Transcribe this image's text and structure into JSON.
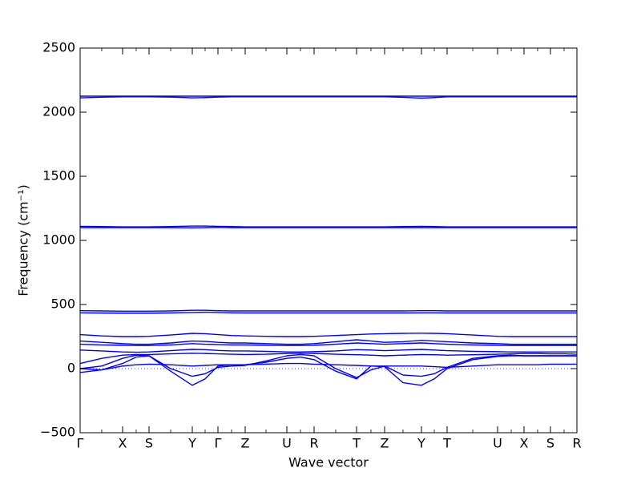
{
  "chart_data": {
    "type": "line",
    "xlabel": "Wave vector",
    "ylabel": "Frequency (cm⁻¹)",
    "x": [
      0,
      27,
      53,
      70,
      86,
      113,
      140,
      156,
      172,
      189,
      206,
      232,
      258,
      275,
      292,
      319,
      345,
      363,
      380,
      403,
      426,
      442,
      458,
      490,
      521,
      538,
      554,
      571,
      587,
      604,
      620
    ],
    "xlim": [
      0,
      620
    ],
    "xticks": [
      {
        "value": 0,
        "label": "Γ"
      },
      {
        "value": 53,
        "label": "X"
      },
      {
        "value": 86,
        "label": "S"
      },
      {
        "value": 140,
        "label": "Y"
      },
      {
        "value": 172,
        "label": "Γ"
      },
      {
        "value": 206,
        "label": "Z"
      },
      {
        "value": 258,
        "label": "U"
      },
      {
        "value": 292,
        "label": "R"
      },
      {
        "value": 345,
        "label": "T"
      },
      {
        "value": 380,
        "label": "Z"
      },
      {
        "value": 426,
        "label": "Y"
      },
      {
        "value": 458,
        "label": "T"
      },
      {
        "value": 521,
        "label": "U"
      },
      {
        "value": 554,
        "label": "X"
      },
      {
        "value": 587,
        "label": "S"
      },
      {
        "value": 620,
        "label": "R"
      }
    ],
    "ylim": [
      -500,
      2500
    ],
    "yticks": [
      -500,
      0,
      500,
      1000,
      1500,
      2000,
      2500
    ],
    "series": [
      {
        "color": "#0000ff",
        "values": [
          2125,
          2125,
          2125,
          2125,
          2125,
          2125,
          2125,
          2125,
          2125,
          2125,
          2125,
          2125,
          2125,
          2125,
          2125,
          2125,
          2125,
          2125,
          2125,
          2125,
          2125,
          2125,
          2125,
          2125,
          2125,
          2125,
          2125,
          2125,
          2125,
          2125,
          2125
        ]
      },
      {
        "color": "#0000ff",
        "values": [
          2112,
          2117,
          2120,
          2120,
          2120,
          2118,
          2112,
          2114,
          2118,
          2120,
          2120,
          2120,
          2120,
          2120,
          2120,
          2120,
          2120,
          2120,
          2120,
          2116,
          2110,
          2114,
          2120,
          2120,
          2120,
          2120,
          2120,
          2120,
          2120,
          2120,
          2120
        ]
      },
      {
        "color": "#0000ff",
        "values": [
          1110,
          1108,
          1106,
          1106,
          1106,
          1108,
          1112,
          1112,
          1110,
          1108,
          1106,
          1106,
          1106,
          1106,
          1106,
          1106,
          1106,
          1106,
          1106,
          1108,
          1110,
          1108,
          1106,
          1106,
          1106,
          1106,
          1106,
          1106,
          1106,
          1106,
          1106
        ]
      },
      {
        "color": "#0000ff",
        "values": [
          1100,
          1100,
          1100,
          1100,
          1100,
          1100,
          1098,
          1100,
          1102,
          1100,
          1100,
          1100,
          1100,
          1100,
          1100,
          1100,
          1100,
          1100,
          1100,
          1100,
          1100,
          1100,
          1100,
          1100,
          1100,
          1100,
          1100,
          1100,
          1100,
          1100,
          1100
        ]
      },
      {
        "color": "#0000ff",
        "values": [
          452,
          450,
          448,
          448,
          448,
          450,
          455,
          455,
          452,
          450,
          450,
          450,
          450,
          450,
          450,
          450,
          450,
          450,
          450,
          450,
          452,
          452,
          450,
          450,
          450,
          450,
          450,
          450,
          450,
          450,
          450
        ]
      },
      {
        "color": "#0000ff",
        "values": [
          435,
          433,
          432,
          432,
          432,
          434,
          438,
          440,
          438,
          435,
          434,
          434,
          434,
          434,
          434,
          434,
          434,
          434,
          434,
          434,
          435,
          435,
          434,
          434,
          434,
          434,
          434,
          434,
          434,
          434,
          434
        ]
      },
      {
        "color": "#0000ff",
        "values": [
          265,
          255,
          250,
          250,
          252,
          262,
          275,
          272,
          265,
          258,
          255,
          252,
          250,
          250,
          252,
          258,
          265,
          270,
          272,
          275,
          276,
          275,
          272,
          262,
          252,
          250,
          250,
          250,
          250,
          250,
          250
        ]
      },
      {
        "color": "#0000ff",
        "values": [
          215,
          205,
          195,
          190,
          190,
          200,
          215,
          212,
          205,
          200,
          200,
          195,
          190,
          190,
          195,
          210,
          225,
          215,
          205,
          210,
          220,
          215,
          210,
          200,
          195,
          190,
          190,
          190,
          190,
          190,
          190
        ]
      },
      {
        "color": "#0000ff",
        "values": [
          190,
          185,
          182,
          180,
          180,
          185,
          195,
          190,
          188,
          185,
          185,
          182,
          180,
          180,
          182,
          190,
          200,
          195,
          190,
          195,
          200,
          195,
          190,
          185,
          182,
          180,
          180,
          180,
          180,
          180,
          180
        ]
      },
      {
        "color": "#0000ff",
        "values": [
          145,
          138,
          130,
          128,
          130,
          140,
          150,
          148,
          142,
          138,
          138,
          135,
          130,
          130,
          132,
          138,
          148,
          145,
          140,
          145,
          150,
          145,
          140,
          135,
          132,
          130,
          130,
          130,
          130,
          130,
          130
        ]
      },
      {
        "color": "#0000ff",
        "values": [
          40,
          80,
          105,
          110,
          110,
          115,
          120,
          118,
          115,
          112,
          110,
          112,
          118,
          120,
          118,
          112,
          108,
          105,
          100,
          105,
          110,
          108,
          105,
          108,
          112,
          115,
          118,
          118,
          115,
          115,
          112
        ]
      },
      {
        "color": "#0000ff",
        "values": [
          0,
          20,
          80,
          105,
          100,
          0,
          -60,
          -40,
          10,
          20,
          25,
          60,
          100,
          110,
          100,
          0,
          -70,
          -10,
          20,
          -50,
          -60,
          -40,
          10,
          80,
          100,
          105,
          100,
          100,
          100,
          100,
          100
        ]
      },
      {
        "color": "#0000ff",
        "values": [
          0,
          -10,
          40,
          90,
          100,
          -20,
          -130,
          -80,
          20,
          30,
          30,
          50,
          80,
          90,
          70,
          -20,
          -80,
          20,
          15,
          -110,
          -130,
          -80,
          0,
          70,
          95,
          100,
          100,
          100,
          100,
          100,
          100
        ]
      },
      {
        "color": "#0000ff",
        "values": [
          -30,
          -10,
          20,
          30,
          35,
          30,
          20,
          25,
          30,
          30,
          30,
          35,
          40,
          40,
          35,
          30,
          25,
          20,
          20,
          20,
          20,
          15,
          10,
          20,
          30,
          30,
          30,
          30,
          35,
          35,
          35
        ]
      }
    ]
  }
}
